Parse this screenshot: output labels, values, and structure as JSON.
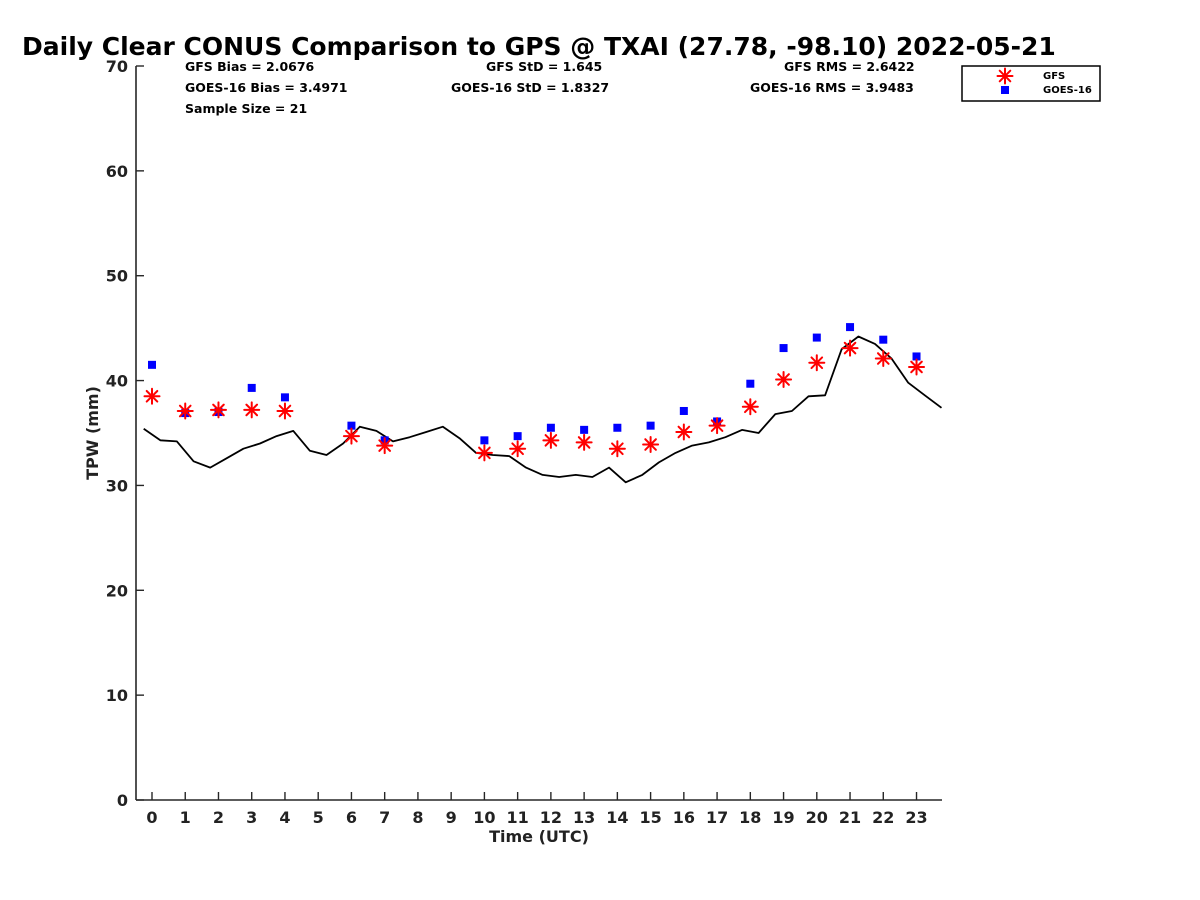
{
  "colors": {
    "gfs": "#ff0000",
    "goes": "#0000ff",
    "gps": "#000000",
    "axis": "#262626"
  },
  "chart_data": {
    "type": "scatter",
    "title": "Daily Clear CONUS Comparison to GPS @ TXAI (27.78, -98.10) 2022-05-21",
    "xlabel": "Time (UTC)",
    "ylabel": "TPW (mm)",
    "xlim": [
      -0.5,
      23.8
    ],
    "ylim": [
      0,
      70
    ],
    "xticks": [
      0,
      1,
      2,
      3,
      4,
      5,
      6,
      7,
      8,
      9,
      10,
      11,
      12,
      13,
      14,
      15,
      16,
      17,
      18,
      19,
      20,
      21,
      22,
      23
    ],
    "xtick_labels": [
      "0",
      "1",
      "2",
      "3",
      "4",
      "5",
      "6",
      "7",
      "8",
      "9",
      "10",
      "11",
      "12",
      "13",
      "14",
      "15",
      "16",
      "17",
      "18",
      "19",
      "20",
      "21",
      "22",
      "23"
    ],
    "yticks": [
      0,
      10,
      20,
      30,
      40,
      50,
      60,
      70
    ],
    "ytick_labels": [
      "0",
      "10",
      "20",
      "30",
      "40",
      "50",
      "60",
      "70"
    ],
    "grid": false,
    "legend": "top-right",
    "stats": {
      "gfs_bias": "GFS Bias = 2.0676",
      "goes_bias": "GOES-16 Bias = 3.4971",
      "sample_size": "Sample Size = 21",
      "gfs_std": "GFS StD = 1.645",
      "goes_std": "GOES-16 StD = 1.8327",
      "gfs_rms": "GFS RMS = 2.6422",
      "goes_rms": "GOES-16 RMS = 3.9483"
    },
    "series": [
      {
        "name": "GFS",
        "marker": "asterisk",
        "x": [
          0,
          1,
          2,
          3,
          4,
          6,
          7,
          10,
          11,
          12,
          13,
          14,
          15,
          16,
          17,
          18,
          19,
          20,
          21,
          22,
          23
        ],
        "y": [
          38.5,
          37.1,
          37.2,
          37.2,
          37.1,
          34.7,
          33.8,
          33.1,
          33.5,
          34.3,
          34.1,
          33.5,
          33.9,
          35.1,
          35.7,
          37.5,
          40.1,
          41.7,
          43.1,
          42.1,
          41.3
        ]
      },
      {
        "name": "GOES-16",
        "marker": "square",
        "x": [
          0,
          1,
          2,
          3,
          4,
          6,
          7,
          10,
          11,
          12,
          13,
          14,
          15,
          16,
          17,
          18,
          19,
          20,
          21,
          22,
          23
        ],
        "y": [
          41.5,
          36.9,
          37.0,
          39.3,
          38.4,
          35.7,
          34.3,
          34.3,
          34.7,
          35.5,
          35.3,
          35.5,
          35.7,
          37.1,
          36.1,
          39.7,
          43.1,
          44.1,
          45.1,
          43.9,
          42.3
        ]
      },
      {
        "marker": "line",
        "x": [
          -0.25,
          0.25,
          0.75,
          1.25,
          1.75,
          2.25,
          2.75,
          3.25,
          3.75,
          4.25,
          4.75,
          5.25,
          5.75,
          6.25,
          6.75,
          7.25,
          7.75,
          8.25,
          8.75,
          9.25,
          9.75,
          10.25,
          10.75,
          11.25,
          11.75,
          12.25,
          12.75,
          13.25,
          13.75,
          14.25,
          14.75,
          15.25,
          15.75,
          16.25,
          16.75,
          17.25,
          17.75,
          18.25,
          18.75,
          19.25,
          19.75,
          20.25,
          20.75,
          21.25,
          21.75,
          22.25,
          22.75,
          23.25,
          23.75
        ],
        "y": [
          35.4,
          34.3,
          34.2,
          32.3,
          31.7,
          32.6,
          33.5,
          34.0,
          34.7,
          35.2,
          33.3,
          32.9,
          34.0,
          35.6,
          35.2,
          34.2,
          34.6,
          35.1,
          35.6,
          34.5,
          33.1,
          32.9,
          32.8,
          31.7,
          31.0,
          30.8,
          31.0,
          30.8,
          31.7,
          30.3,
          31.0,
          32.2,
          33.1,
          33.8,
          34.1,
          34.6,
          35.3,
          35.0,
          36.8,
          37.1,
          38.5,
          38.6,
          43.0,
          44.2,
          43.5,
          42.1,
          39.8,
          38.6,
          37.4
        ]
      }
    ]
  }
}
